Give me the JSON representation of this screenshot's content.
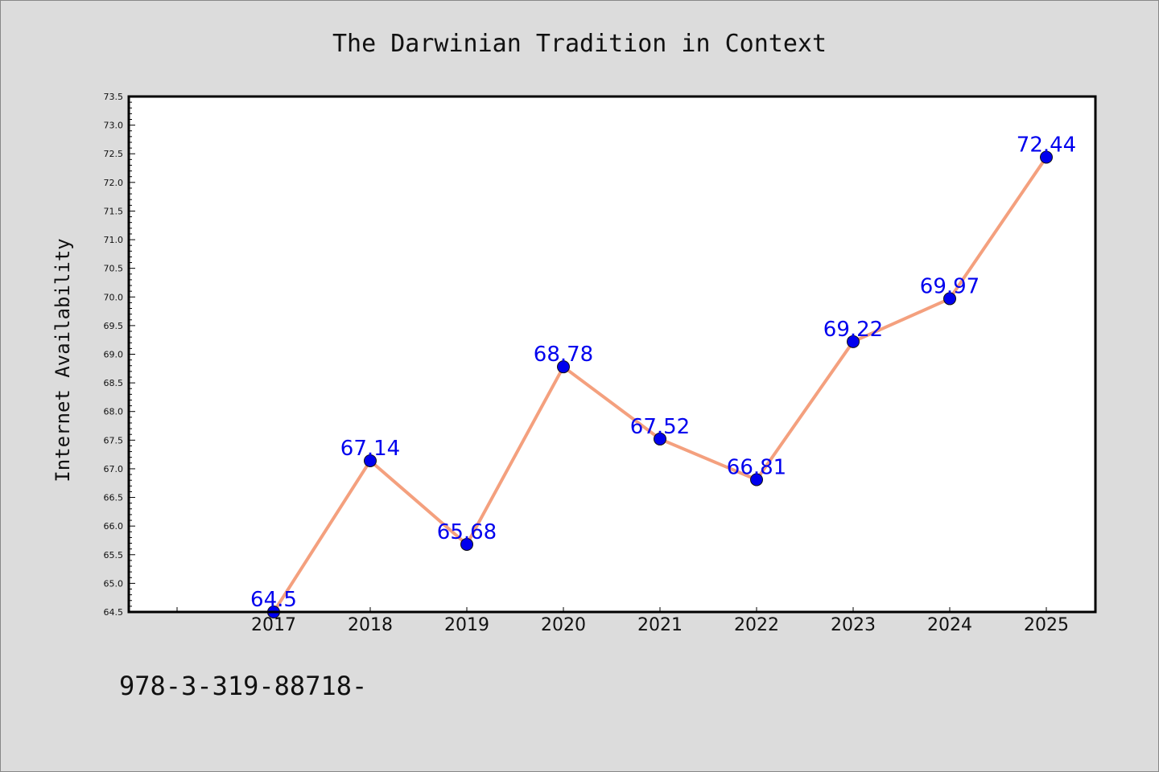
{
  "chart_data": {
    "type": "line",
    "title": "The Darwinian Tradition in Context",
    "xlabel": "",
    "ylabel": "Internet Availability",
    "categories": [
      "2017",
      "2018",
      "2019",
      "2020",
      "2021",
      "2022",
      "2023",
      "2024",
      "2025"
    ],
    "series": [
      {
        "values": [
          64.5,
          67.14,
          65.68,
          68.78,
          67.52,
          66.81,
          69.22,
          69.97,
          72.44
        ],
        "data_labels": [
          "64.5",
          "67.14",
          "65.68",
          "68.78",
          "67.52",
          "66.81",
          "69.22",
          "69.97",
          "72.44"
        ]
      }
    ],
    "ylim": [
      64.5,
      73.5
    ],
    "y_ticks": [
      "64.5",
      "65.0",
      "65.5",
      "66.0",
      "66.5",
      "67.0",
      "67.5",
      "68.0",
      "68.5",
      "69.0",
      "69.5",
      "70.0",
      "70.5",
      "71.0",
      "71.5",
      "72.0",
      "72.5",
      "73.0",
      "73.5"
    ],
    "grid": false,
    "legend": "none",
    "colors": {
      "line": "#f4a07e",
      "marker": "#0000ee",
      "marker_edge": "#111111",
      "data_label": "#0000ee",
      "background": "#dcdcdc",
      "plot_area": "#ffffff"
    }
  },
  "footer": {
    "code": "978-3-319-88718-"
  }
}
